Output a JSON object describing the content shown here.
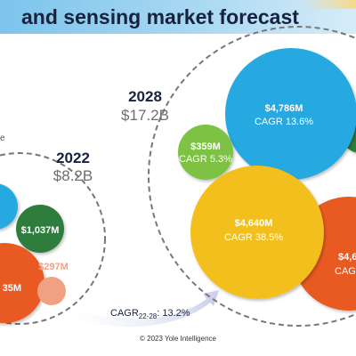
{
  "header": {
    "title": "and sensing market forecast"
  },
  "colors": {
    "blue": "#27a9e1",
    "green": "#2f7d3c",
    "lightgreen": "#7dc242",
    "yellow": "#f3bf1a",
    "orange": "#e85a24",
    "peach": "#f1a183",
    "navy": "#16233f",
    "grey": "#6d6e71"
  },
  "chart_data": {
    "type": "bubble",
    "title": "",
    "cagr_label": {
      "prefix": "CAGR",
      "subscript": "22-28",
      "suffix": ": 13.2%"
    },
    "groups": [
      {
        "year": "2022",
        "total": "$8.2B",
        "bubbles": [
          {
            "label": "",
            "value_musd": 2900,
            "cagr": "",
            "color": "blue"
          },
          {
            "label": "$1,037M",
            "value_musd": 1037,
            "cagr": "",
            "color": "green"
          },
          {
            "label": "35M",
            "value_musd": 3000,
            "cagr": "",
            "color": "orange"
          },
          {
            "label": "$297M",
            "value_musd": 297,
            "cagr": "",
            "color": "peach"
          }
        ]
      },
      {
        "year": "2028",
        "total": "$17.2B",
        "bubbles": [
          {
            "label": "$4,786M",
            "value_musd": 4786,
            "cagr": "CAGR 13.6%",
            "color": "blue"
          },
          {
            "label": "$359M",
            "value_musd": 359,
            "cagr": "CAGR 5.3%",
            "color": "lightgreen"
          },
          {
            "label": "$4,640M",
            "value_musd": 4640,
            "cagr": "CAGR 38.5%",
            "color": "yellow"
          },
          {
            "label": "$4,6",
            "value_musd": 4600,
            "cagr": "CAGR",
            "color": "orange"
          },
          {
            "label": "",
            "value_musd": 1400,
            "cagr": "",
            "color": "green"
          }
        ]
      }
    ],
    "partial_text": "e"
  },
  "footer": {
    "copyright": "© 2023 Yole Intelligence"
  }
}
